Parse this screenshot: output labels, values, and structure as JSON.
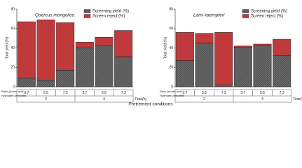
{
  "chart_data": [
    {
      "type": "bar",
      "stacked": true,
      "title": "Quercus mongolica",
      "ylabel": "Total yield (%)",
      "categories": [
        "3:7",
        "5:5",
        "7:3",
        "3:7",
        "5:5",
        "7:3"
      ],
      "groups": [
        "2",
        "4"
      ],
      "group_label": "Time(h)",
      "ratio_label": [
        "Ratio (Acetic acid :",
        "Hydrogen peroxide)"
      ],
      "series": [
        {
          "name": "Screening yield (%)",
          "color": "#555555",
          "values": [
            9,
            7,
            17,
            40,
            42,
            31
          ]
        },
        {
          "name": "Screen reject (%)",
          "color": "#c0393b",
          "values": [
            58,
            62,
            49,
            6,
            9,
            27
          ]
        }
      ],
      "ylim": [
        0,
        80
      ],
      "yticks": [
        0,
        20,
        40,
        60,
        80
      ]
    },
    {
      "type": "bar",
      "stacked": true,
      "title": "Larix kaempferi",
      "ylabel": "Total yield (%)",
      "categories": [
        "3:7",
        "5:5",
        "7:3",
        "3:7",
        "5:5",
        "7:3"
      ],
      "groups": [
        "2",
        "4"
      ],
      "group_label": "Time(h)",
      "ratio_label": [
        "Ratio (Acetic acid :",
        "Hydrogen peroxide)"
      ],
      "series": [
        {
          "name": "Screening yield (%)",
          "color": "#555555",
          "values": [
            27,
            45,
            2,
            41,
            42,
            32
          ]
        },
        {
          "name": "Screen reject (%)",
          "color": "#c0393b",
          "values": [
            29,
            10,
            54,
            1,
            2,
            17
          ]
        }
      ],
      "ylim": [
        0,
        80
      ],
      "yticks": [
        0,
        20,
        40,
        60,
        80
      ]
    }
  ],
  "footer": "Pretrement conditions"
}
